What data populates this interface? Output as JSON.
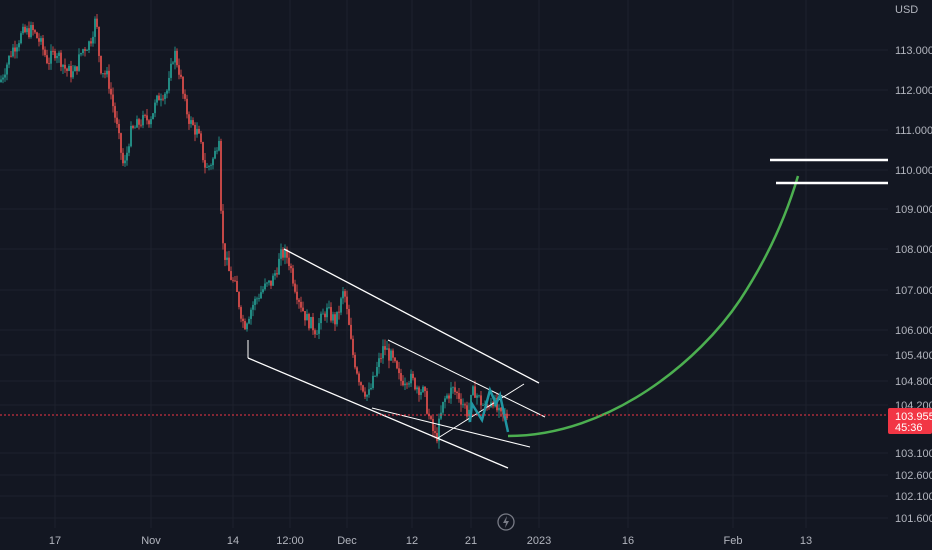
{
  "chart_data": {
    "type": "candlestick",
    "currency_label": "USD",
    "y_ticks": [
      "113.000",
      "112.000",
      "111.000",
      "110.000",
      "109.000",
      "108.000",
      "107.000",
      "106.000",
      "105.400",
      "104.800",
      "104.200",
      "103.100",
      "102.600",
      "102.100",
      "101.600"
    ],
    "x_ticks": [
      "17",
      "Nov",
      "14",
      "12:00",
      "Dec",
      "12",
      "21",
      "2023",
      "16",
      "Feb",
      "13"
    ],
    "last_price": "103.955",
    "countdown": "45:36",
    "colors": {
      "background": "#131722",
      "up": "#26a69a",
      "down": "#ef5350",
      "projection": "#4caf50",
      "pattern": "#2196a3",
      "price_line": "#f23645",
      "drawing": "#ffffff"
    },
    "annotations": {
      "descending_channel": true,
      "projection_curve_to": "110.000",
      "target_lines": [
        "110.1",
        "109.6"
      ]
    },
    "candle_path": [
      [
        0,
        112.2
      ],
      [
        12,
        113.0
      ],
      [
        22,
        113.4
      ],
      [
        32,
        113.5
      ],
      [
        40,
        113.2
      ],
      [
        48,
        112.7
      ],
      [
        56,
        113.0
      ],
      [
        66,
        112.5
      ],
      [
        74,
        112.4
      ],
      [
        82,
        113.0
      ],
      [
        90,
        113.2
      ],
      [
        96,
        113.8
      ],
      [
        100,
        112.6
      ],
      [
        108,
        112.3
      ],
      [
        116,
        111.2
      ],
      [
        124,
        110.0
      ],
      [
        130,
        110.9
      ],
      [
        140,
        111.2
      ],
      [
        150,
        111.3
      ],
      [
        160,
        111.9
      ],
      [
        168,
        112.0
      ],
      [
        174,
        113.0
      ],
      [
        180,
        112.4
      ],
      [
        184,
        111.7
      ],
      [
        190,
        111.2
      ],
      [
        198,
        110.9
      ],
      [
        206,
        110.0
      ],
      [
        214,
        110.3
      ],
      [
        219,
        110.9
      ],
      [
        222,
        108.2
      ],
      [
        228,
        107.5
      ],
      [
        236,
        107.0
      ],
      [
        244,
        106.1
      ],
      [
        252,
        106.6
      ],
      [
        262,
        107.0
      ],
      [
        272,
        107.2
      ],
      [
        282,
        107.9
      ],
      [
        288,
        107.8
      ],
      [
        296,
        107.0
      ],
      [
        306,
        106.3
      ],
      [
        316,
        106.0
      ],
      [
        326,
        106.5
      ],
      [
        336,
        106.2
      ],
      [
        344,
        107.0
      ],
      [
        352,
        105.5
      ],
      [
        360,
        104.8
      ],
      [
        368,
        104.4
      ],
      [
        376,
        105.0
      ],
      [
        384,
        105.6
      ],
      [
        392,
        105.3
      ],
      [
        400,
        104.8
      ],
      [
        408,
        104.9
      ],
      [
        416,
        104.7
      ],
      [
        424,
        104.5
      ],
      [
        430,
        103.8
      ],
      [
        436,
        103.4
      ],
      [
        444,
        104.3
      ],
      [
        452,
        104.6
      ],
      [
        460,
        104.4
      ],
      [
        468,
        104.0
      ],
      [
        474,
        104.6
      ],
      [
        480,
        104.3
      ],
      [
        486,
        104.1
      ],
      [
        492,
        104.4
      ],
      [
        500,
        103.9
      ],
      [
        508,
        103.96
      ]
    ]
  }
}
